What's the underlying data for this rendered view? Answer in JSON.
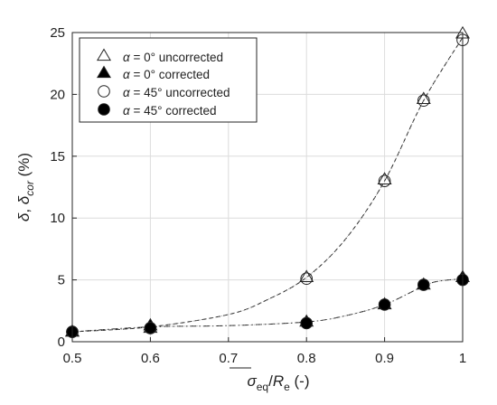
{
  "chart_data": {
    "type": "scatter",
    "xlabel": {
      "bar": "σ",
      "sub1": "eq",
      "mid": "/",
      "r": "R",
      "sub2": "e",
      "tail": " (-)"
    },
    "ylabel": {
      "d1": "δ",
      "comma": ", ",
      "d2": "δ",
      "sub": "cor",
      "tail": " (%)"
    },
    "xlim": [
      0.5,
      1
    ],
    "ylim": [
      0,
      25
    ],
    "xticks": [
      "0.5",
      "0.6",
      "0.7",
      "0.8",
      "0.9",
      "1"
    ],
    "yticks": [
      "0",
      "5",
      "10",
      "15",
      "20",
      "25"
    ],
    "grid": true,
    "legend_position": "top-left",
    "legend_alpha_symbol": "α",
    "series": [
      {
        "name": " = 0° uncorrected",
        "marker": "triangle-open",
        "x": [
          0.5,
          0.6,
          0.8,
          0.9,
          0.95,
          1.0
        ],
        "y": [
          0.8,
          1.1,
          5.2,
          13.1,
          19.6,
          24.9
        ]
      },
      {
        "name": " = 0° corrected",
        "marker": "triangle-filled",
        "x": [
          0.5,
          0.6,
          0.8,
          0.9,
          0.95,
          1.0
        ],
        "y": [
          0.8,
          1.3,
          1.6,
          3.0,
          4.6,
          5.2
        ]
      },
      {
        "name": " = 45° uncorrected",
        "marker": "circle-open",
        "x": [
          0.5,
          0.6,
          0.8,
          0.9,
          0.95,
          1.0
        ],
        "y": [
          0.8,
          1.1,
          5.1,
          13.0,
          19.5,
          24.4
        ]
      },
      {
        "name": " = 45° corrected",
        "marker": "circle-filled",
        "x": [
          0.5,
          0.6,
          0.8,
          0.9,
          0.95,
          1.0
        ],
        "y": [
          0.8,
          1.1,
          1.5,
          3.0,
          4.6,
          5.0
        ]
      }
    ],
    "fit_lines": [
      {
        "style": "dashed",
        "x": [
          0.5,
          0.6,
          0.7,
          0.75,
          0.8,
          0.85,
          0.9,
          0.95,
          1.0
        ],
        "y": [
          0.8,
          1.2,
          2.2,
          3.4,
          5.2,
          8.3,
          13.0,
          19.5,
          24.6
        ]
      },
      {
        "style": "dash-dot",
        "x": [
          0.5,
          0.6,
          0.7,
          0.8,
          0.85,
          0.9,
          0.95,
          0.97,
          1.0
        ],
        "y": [
          0.8,
          1.2,
          1.3,
          1.6,
          2.1,
          3.0,
          4.5,
          4.9,
          5.1
        ]
      }
    ]
  }
}
